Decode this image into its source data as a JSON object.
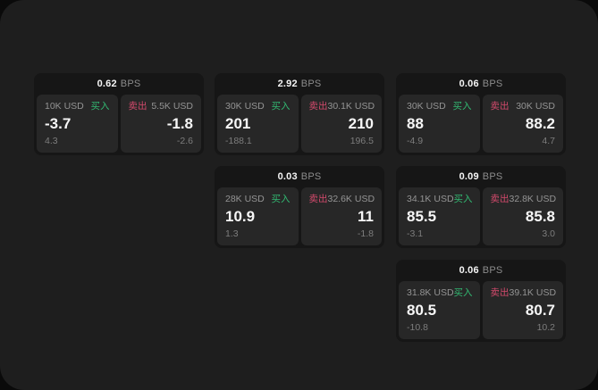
{
  "labels": {
    "bps_unit": "BPS",
    "buy": "买入",
    "sell": "卖出"
  },
  "colors": {
    "background": "#0a0a0a",
    "surface": "#1e1e1e",
    "card": "#161616",
    "tile": "#272727",
    "text_primary": "#f5f5f5",
    "text_secondary": "#8c8c8c",
    "buy_green": "#32b972",
    "sell_red": "#d34a6c"
  },
  "cards": [
    {
      "bps": "0.62",
      "buy": {
        "amount": "10K USD",
        "price": "-3.7",
        "change": "4.3"
      },
      "sell": {
        "amount": "5.5K USD",
        "price": "-1.8",
        "change": "-2.6"
      }
    },
    {
      "bps": "2.92",
      "buy": {
        "amount": "30K USD",
        "price": "201",
        "change": "-188.1"
      },
      "sell": {
        "amount": "30.1K USD",
        "price": "210",
        "change": "196.5"
      }
    },
    {
      "bps": "0.06",
      "buy": {
        "amount": "30K USD",
        "price": "88",
        "change": "-4.9"
      },
      "sell": {
        "amount": "30K USD",
        "price": "88.2",
        "change": "4.7"
      }
    },
    {
      "bps": "0.03",
      "buy": {
        "amount": "28K USD",
        "price": "10.9",
        "change": "1.3"
      },
      "sell": {
        "amount": "32.6K USD",
        "price": "11",
        "change": "-1.8"
      }
    },
    {
      "bps": "0.09",
      "buy": {
        "amount": "34.1K USD",
        "price": "85.5",
        "change": "-3.1"
      },
      "sell": {
        "amount": "32.8K USD",
        "price": "85.8",
        "change": "3.0"
      }
    },
    {
      "bps": "0.06",
      "buy": {
        "amount": "31.8K USD",
        "price": "80.5",
        "change": "-10.8"
      },
      "sell": {
        "amount": "39.1K USD",
        "price": "80.7",
        "change": "10.2"
      }
    }
  ]
}
